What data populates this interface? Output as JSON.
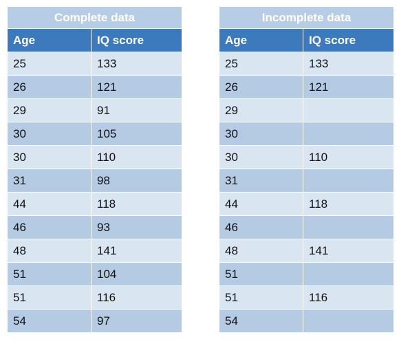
{
  "tables": [
    {
      "title": "Complete data",
      "headers": [
        "Age",
        "IQ score"
      ],
      "rows": [
        [
          "25",
          "133"
        ],
        [
          "26",
          "121"
        ],
        [
          "29",
          "91"
        ],
        [
          "30",
          "105"
        ],
        [
          "30",
          "110"
        ],
        [
          "31",
          "98"
        ],
        [
          "44",
          "118"
        ],
        [
          "46",
          "93"
        ],
        [
          "48",
          "141"
        ],
        [
          "51",
          "104"
        ],
        [
          "51",
          "116"
        ],
        [
          "54",
          "97"
        ]
      ]
    },
    {
      "title": "Incomplete data",
      "headers": [
        "Age",
        "IQ score"
      ],
      "rows": [
        [
          "25",
          "133"
        ],
        [
          "26",
          "121"
        ],
        [
          "29",
          ""
        ],
        [
          "30",
          ""
        ],
        [
          "30",
          "110"
        ],
        [
          "31",
          ""
        ],
        [
          "44",
          "118"
        ],
        [
          "46",
          ""
        ],
        [
          "48",
          "141"
        ],
        [
          "51",
          ""
        ],
        [
          "51",
          "116"
        ],
        [
          "54",
          ""
        ]
      ]
    }
  ],
  "colors": {
    "title_bg": "#b7cde6",
    "header_bg": "#3d79bd",
    "row_light": "#dae5f2",
    "row_dark": "#b5cbe4"
  }
}
